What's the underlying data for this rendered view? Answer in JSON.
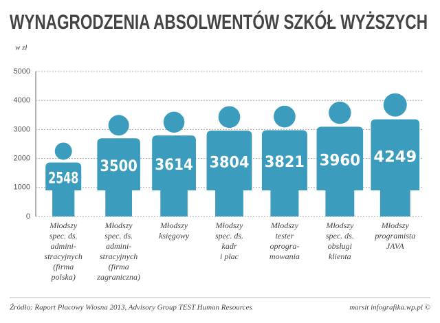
{
  "chart_data": {
    "type": "bar",
    "title": "WYNAGRODZENIA ABSOLWENTÓW SZKÓŁ WYŻSZYCH",
    "y_label": "w zł",
    "categories": [
      "Młodszy\nspec. ds.\nadmini-\nstracyjnych\n(firma\npolska)",
      "Młodszy\nspec. ds.\nadmini-\nstracyjnych\n(firma\nzagraniczna)",
      "Młodszy\nksięgowy",
      "Młodszy\nspec. ds.\nkadr\ni płac",
      "Młodszy\ntester\noprogra-\nmowania",
      "Młodszy\nspec. ds.\nobsługi\nklienta",
      "Młodszy\nprogramista\nJAVA"
    ],
    "values": [
      2548,
      3500,
      3614,
      3804,
      3821,
      3960,
      4249
    ],
    "color": "#3b9cbd",
    "ylim": [
      0,
      5000
    ],
    "yticks": [
      0,
      1000,
      2000,
      3000,
      4000,
      5000
    ],
    "grid": true,
    "source": "Źródło: Raport Płacowy Wiosna 2013, Advisory Group TEST Human Resources",
    "credit": "marsit infografika.wp.pl ©"
  }
}
